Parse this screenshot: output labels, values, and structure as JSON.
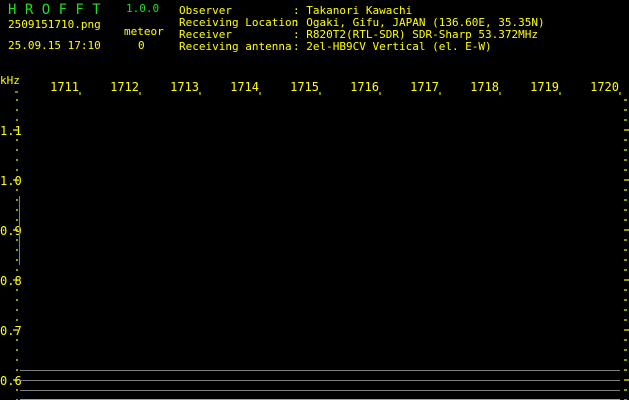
{
  "app": {
    "title": "H R O F F T",
    "version": "1.0.0"
  },
  "file": {
    "name": "2509151710.png",
    "datetime": "25.09.15 17:10"
  },
  "meteor": {
    "label": "meteor",
    "count": "0"
  },
  "info": [
    {
      "label": "Observer",
      "value": ": Takanori Kawachi"
    },
    {
      "label": "Receiving Location",
      "value": ": Ogaki, Gifu, JAPAN (136.60E, 35.35N)"
    },
    {
      "label": "Receiver",
      "value": ": R820T2(RTL-SDR) SDR-Sharp 53.372MHz"
    },
    {
      "label": "Receiving antenna",
      "value": ": 2el-HB9CV Vertical (el. E-W)"
    }
  ],
  "axis": {
    "unit": "kHz",
    "x_ticks": [
      "1711",
      "1712",
      "1713",
      "1714",
      "1715",
      "1716",
      "1717",
      "1718",
      "1719",
      "1720"
    ],
    "y_ticks": [
      "1.1",
      "1.0",
      "0.9",
      "0.8",
      "0.7",
      "0.6"
    ]
  },
  "colors": {
    "text": "#ffff00",
    "title": "#22dd22",
    "trace": "#808080",
    "baseline": "#00e5e5"
  }
}
